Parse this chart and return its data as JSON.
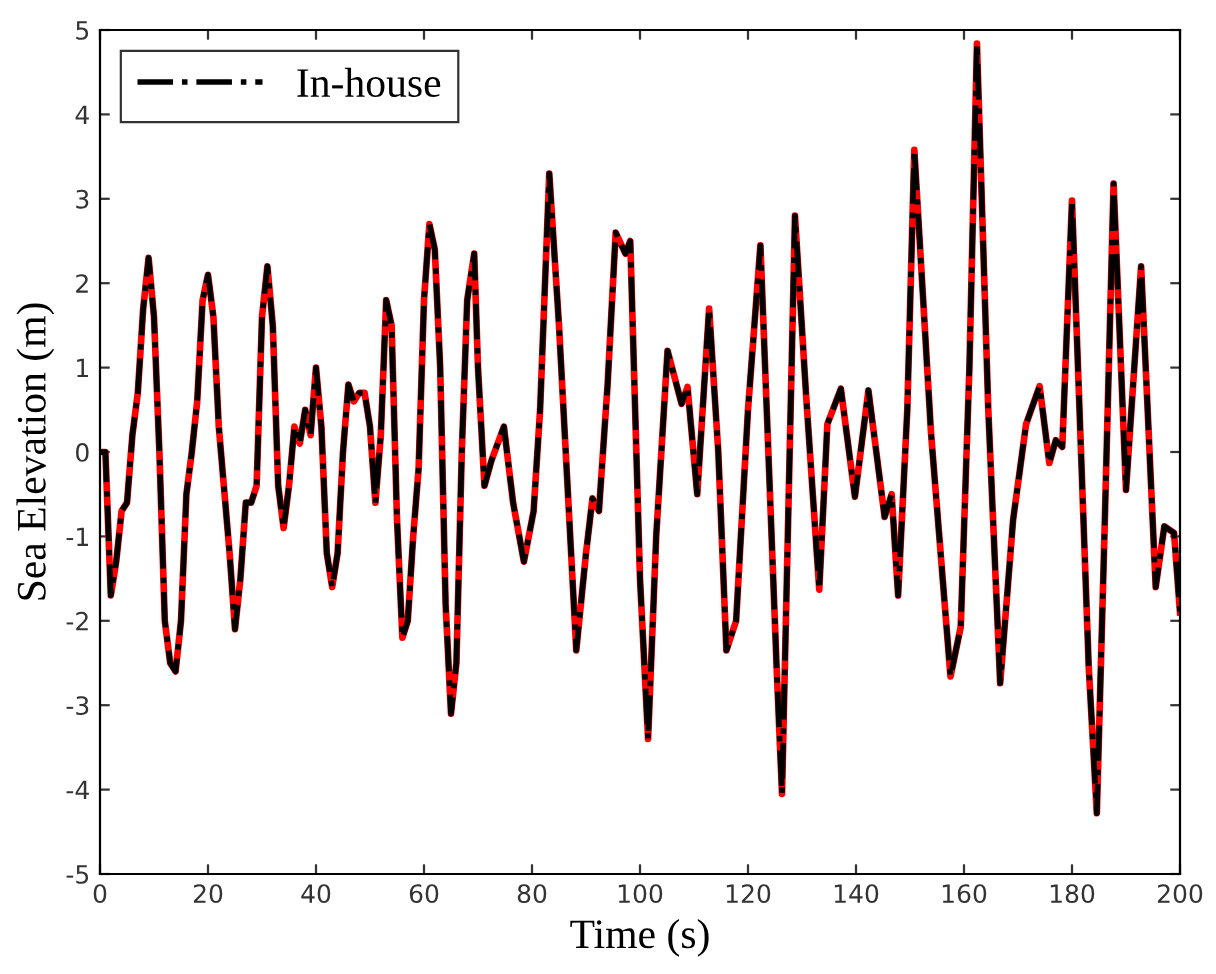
{
  "chart_data": {
    "type": "line",
    "xlabel": "Time (s)",
    "ylabel": "Sea Elevation (m)",
    "x": [
      0,
      1,
      2,
      3,
      4,
      5,
      6,
      7,
      8,
      9,
      10,
      11,
      12,
      13,
      14,
      15,
      16,
      17,
      18,
      19,
      20,
      21,
      22,
      24,
      25,
      26,
      27,
      28,
      29,
      30,
      31,
      32,
      33,
      34,
      35,
      36,
      37,
      38,
      39,
      40,
      41,
      42,
      43,
      44,
      45,
      46,
      47,
      48,
      49,
      50,
      51,
      52,
      53,
      54,
      55,
      56,
      57,
      58,
      59,
      60,
      61,
      62,
      63,
      64,
      65,
      66,
      67,
      68,
      69.3,
      70,
      71.2,
      72.5,
      74.8,
      76.5,
      78.5,
      80.3,
      81.5,
      83.2,
      85,
      88.2,
      90,
      91.2,
      92.4,
      94,
      95.5,
      97.3,
      98.2,
      100,
      101.5,
      103,
      105.1,
      107.7,
      108.8,
      110.6,
      112.8,
      114.5,
      116,
      117.8,
      120,
      122.3,
      125.3,
      126.3,
      128.7,
      130.8,
      133.2,
      134.7,
      137.2,
      139.8,
      142.3,
      145.3,
      146.6,
      147.8,
      149.5,
      150.8,
      153.9,
      157.5,
      159.4,
      161,
      162.4,
      164.5,
      166.7,
      169.1,
      171.5,
      174,
      175.8,
      177,
      178.2,
      180,
      183.1,
      184.6,
      186,
      187.7,
      190,
      192.8,
      195.5,
      197.1,
      198.9,
      200
    ],
    "series": [
      {
        "color": "#ff0000",
        "line_style": "solid",
        "values": [
          0,
          0.0,
          -1.7,
          -1.3,
          -0.7,
          -0.6,
          0.2,
          0.7,
          1.7,
          2.3,
          1.6,
          0,
          -2.0,
          -2.5,
          -2.6,
          -2.0,
          -0.5,
          0.0,
          0.6,
          1.8,
          2.1,
          1.6,
          0.3,
          -1.2,
          -2.1,
          -1.5,
          -0.6,
          -0.6,
          -0.4,
          1.6,
          2.2,
          1.5,
          -0.4,
          -0.9,
          -0.4,
          0.3,
          0.1,
          0.5,
          0.2,
          1.0,
          0.3,
          -1.2,
          -1.6,
          -1.2,
          0.0,
          0.8,
          0.6,
          0.7,
          0.7,
          0.3,
          -0.6,
          0.2,
          1.8,
          1.5,
          -0.8,
          -2.2,
          -2.0,
          -1.0,
          -0.2,
          1.8,
          2.7,
          2.4,
          1.0,
          -1.8,
          -3.1,
          -2.5,
          0.0,
          1.8,
          2.35,
          1.0,
          -0.4,
          -0.1,
          0.3,
          -0.6,
          -1.3,
          -0.7,
          0.5,
          3.3,
          1.5,
          -2.35,
          -1.2,
          -0.55,
          -0.7,
          0.8,
          2.6,
          2.35,
          2.5,
          -1.5,
          -3.4,
          -1.0,
          1.2,
          0.57,
          0.77,
          -0.5,
          1.7,
          0.0,
          -2.35,
          -2.0,
          0.5,
          2.45,
          -2.55,
          -4.05,
          2.8,
          0.63,
          -1.63,
          0.33,
          0.75,
          -0.53,
          0.73,
          -0.77,
          -0.5,
          -1.7,
          0.5,
          3.58,
          0.22,
          -2.66,
          -2.07,
          1.0,
          4.84,
          0.5,
          -2.74,
          -0.8,
          0.33,
          0.78,
          -0.13,
          0.14,
          0.06,
          2.98,
          -2.55,
          -4.28,
          -1.0,
          3.18,
          -0.45,
          2.2,
          -1.6,
          -0.88,
          -0.96,
          -1.9
        ]
      },
      {
        "name": "In-house",
        "color": "#000000",
        "line_style": "dashdot",
        "values": [
          0,
          0.0,
          -1.7,
          -1.3,
          -0.7,
          -0.6,
          0.2,
          0.7,
          1.7,
          2.3,
          1.6,
          0,
          -2.0,
          -2.5,
          -2.6,
          -2.0,
          -0.5,
          0.0,
          0.6,
          1.8,
          2.1,
          1.6,
          0.3,
          -1.2,
          -2.1,
          -1.5,
          -0.6,
          -0.6,
          -0.4,
          1.6,
          2.2,
          1.5,
          -0.4,
          -0.9,
          -0.4,
          0.3,
          0.1,
          0.5,
          0.2,
          1.0,
          0.3,
          -1.2,
          -1.6,
          -1.2,
          0.0,
          0.8,
          0.6,
          0.7,
          0.7,
          0.3,
          -0.6,
          0.2,
          1.8,
          1.5,
          -0.8,
          -2.2,
          -2.0,
          -1.0,
          -0.2,
          1.8,
          2.7,
          2.4,
          1.0,
          -1.8,
          -3.1,
          -2.5,
          0.0,
          1.8,
          2.35,
          1.0,
          -0.4,
          -0.1,
          0.3,
          -0.6,
          -1.3,
          -0.7,
          0.5,
          3.3,
          1.5,
          -2.35,
          -1.2,
          -0.55,
          -0.7,
          0.8,
          2.6,
          2.35,
          2.5,
          -1.5,
          -3.4,
          -1.0,
          1.2,
          0.57,
          0.77,
          -0.5,
          1.7,
          0.0,
          -2.35,
          -2.0,
          0.5,
          2.45,
          -2.55,
          -4.05,
          2.8,
          0.63,
          -1.63,
          0.33,
          0.75,
          -0.53,
          0.73,
          -0.77,
          -0.5,
          -1.7,
          0.5,
          3.58,
          0.22,
          -2.66,
          -2.07,
          1.0,
          4.84,
          0.5,
          -2.74,
          -0.8,
          0.33,
          0.78,
          -0.13,
          0.14,
          0.06,
          2.98,
          -2.55,
          -4.28,
          -1.0,
          3.18,
          -0.45,
          2.2,
          -1.6,
          -0.88,
          -0.96,
          -1.9
        ]
      }
    ],
    "xlim": [
      0,
      200
    ],
    "xticks": [
      0,
      20,
      40,
      60,
      80,
      100,
      120,
      140,
      160,
      180,
      200
    ],
    "ylim": [
      -5,
      5
    ],
    "yticks": [
      -5,
      -4,
      -3,
      -2,
      -1,
      0,
      1,
      2,
      3,
      4,
      5
    ],
    "grid": false,
    "legend": "top left",
    "marker": "none"
  }
}
